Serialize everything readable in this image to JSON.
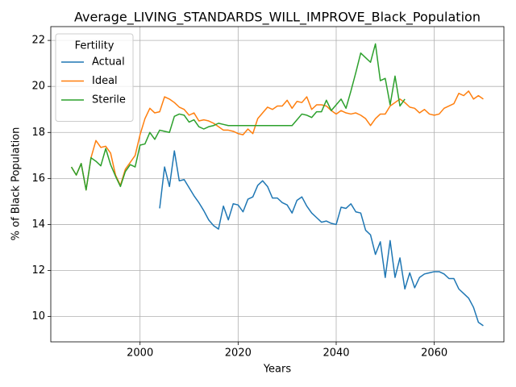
{
  "chart_data": {
    "type": "line",
    "title": "Average_LIVING_STANDARDS_WILL_IMPROVE_Black_Population",
    "xlabel": "Years",
    "ylabel": "% of Black Population",
    "legend_title": "Fertility",
    "legend": "upper left",
    "grid": true,
    "xlim": [
      1981.8,
      2074.2
    ],
    "ylim": [
      8.9,
      22.6
    ],
    "xticks": [
      2000,
      2020,
      2040,
      2060
    ],
    "yticks": [
      10,
      12,
      14,
      16,
      18,
      20,
      22
    ],
    "x": [
      1986,
      1987,
      1988,
      1989,
      1990,
      1991,
      1992,
      1993,
      1994,
      1995,
      1996,
      1997,
      1998,
      1999,
      2000,
      2001,
      2002,
      2003,
      2004,
      2005,
      2006,
      2007,
      2008,
      2009,
      2010,
      2011,
      2012,
      2013,
      2014,
      2015,
      2016,
      2017,
      2018,
      2019,
      2020,
      2021,
      2022,
      2023,
      2024,
      2025,
      2026,
      2027,
      2028,
      2029,
      2030,
      2031,
      2032,
      2033,
      2034,
      2035,
      2036,
      2037,
      2038,
      2039,
      2040,
      2041,
      2042,
      2043,
      2044,
      2045,
      2046,
      2047,
      2048,
      2049,
      2050,
      2051,
      2052,
      2053,
      2054,
      2055,
      2056,
      2057,
      2058,
      2059,
      2060,
      2061,
      2062,
      2063,
      2064,
      2065,
      2066,
      2067,
      2068,
      2069,
      2070
    ],
    "series": [
      {
        "name": "Actual",
        "color": "#1f77b4",
        "values": [
          null,
          null,
          null,
          null,
          null,
          null,
          null,
          null,
          null,
          null,
          null,
          null,
          null,
          null,
          null,
          null,
          null,
          null,
          14.7,
          16.5,
          15.65,
          17.2,
          15.9,
          15.95,
          15.6,
          15.25,
          14.95,
          14.6,
          14.2,
          13.95,
          13.8,
          14.8,
          14.2,
          14.9,
          14.85,
          14.55,
          15.1,
          15.2,
          15.7,
          15.9,
          15.65,
          15.15,
          15.15,
          14.95,
          14.85,
          14.5,
          15.05,
          15.2,
          14.8,
          14.5,
          14.3,
          14.1,
          14.15,
          14.05,
          14.0,
          14.75,
          14.7,
          14.9,
          14.55,
          14.5,
          13.75,
          13.55,
          12.7,
          13.25,
          11.7,
          13.3,
          11.7,
          12.55,
          11.2,
          11.9,
          11.25,
          11.7,
          11.85,
          11.9,
          11.95,
          11.95,
          11.85,
          11.65,
          11.65,
          11.2,
          11.0,
          10.8,
          10.4,
          9.75,
          9.6
        ]
      },
      {
        "name": "Ideal",
        "color": "#ff7f0e",
        "values": [
          16.5,
          16.15,
          16.65,
          15.5,
          16.9,
          17.65,
          17.35,
          17.4,
          17.1,
          16.15,
          15.7,
          16.4,
          16.7,
          17.0,
          17.9,
          18.6,
          19.05,
          18.85,
          18.9,
          19.55,
          19.45,
          19.3,
          19.1,
          19.0,
          18.75,
          18.85,
          18.5,
          18.55,
          18.5,
          18.4,
          18.25,
          18.1,
          18.1,
          18.05,
          17.95,
          17.9,
          18.15,
          17.95,
          18.6,
          18.85,
          19.1,
          19.0,
          19.15,
          19.15,
          19.4,
          19.05,
          19.35,
          19.3,
          19.55,
          19.0,
          19.2,
          19.2,
          19.15,
          18.95,
          18.8,
          18.95,
          18.85,
          18.8,
          18.85,
          18.75,
          18.6,
          18.3,
          18.6,
          18.8,
          18.8,
          19.15,
          19.3,
          19.45,
          19.3,
          19.1,
          19.05,
          18.85,
          19.0,
          18.8,
          18.75,
          18.8,
          19.05,
          19.15,
          19.25,
          19.7,
          19.6,
          19.8,
          19.45,
          19.6,
          19.45
        ]
      },
      {
        "name": "Sterile",
        "color": "#2ca02c",
        "values": [
          16.5,
          16.15,
          16.65,
          15.5,
          16.9,
          16.75,
          16.55,
          17.3,
          16.6,
          16.1,
          15.65,
          16.3,
          16.6,
          16.5,
          17.45,
          17.5,
          18.0,
          17.7,
          18.1,
          18.05,
          18.0,
          18.7,
          18.8,
          18.75,
          18.45,
          18.55,
          18.25,
          18.15,
          18.25,
          18.3,
          18.4,
          18.35,
          18.3,
          18.3,
          18.3,
          18.3,
          18.3,
          18.3,
          18.3,
          18.3,
          18.3,
          18.3,
          18.3,
          18.3,
          18.3,
          18.3,
          18.55,
          18.8,
          18.75,
          18.65,
          18.9,
          18.9,
          19.4,
          18.95,
          19.2,
          19.45,
          19.05,
          19.8,
          20.6,
          21.45,
          21.25,
          21.05,
          21.85,
          20.25,
          20.35,
          19.2,
          20.45,
          19.15,
          19.45,
          null,
          null,
          null,
          null,
          null,
          null,
          null,
          null,
          null,
          null,
          null,
          null,
          null,
          null,
          null,
          null
        ]
      }
    ]
  }
}
